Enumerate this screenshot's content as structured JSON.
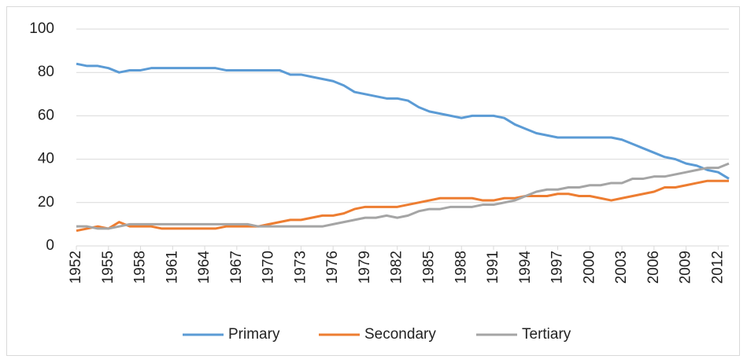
{
  "chart_data": {
    "type": "line",
    "x": [
      1952,
      1953,
      1954,
      1955,
      1956,
      1957,
      1958,
      1959,
      1960,
      1961,
      1962,
      1963,
      1964,
      1965,
      1966,
      1967,
      1968,
      1969,
      1970,
      1971,
      1972,
      1973,
      1974,
      1975,
      1976,
      1977,
      1978,
      1979,
      1980,
      1981,
      1982,
      1983,
      1984,
      1985,
      1986,
      1987,
      1988,
      1989,
      1990,
      1991,
      1992,
      1993,
      1994,
      1995,
      1996,
      1997,
      1998,
      1999,
      2000,
      2001,
      2002,
      2003,
      2004,
      2005,
      2006,
      2007,
      2008,
      2009,
      2010,
      2011,
      2012,
      2013
    ],
    "xlim": [
      1952,
      2013
    ],
    "xticks": [
      1952,
      1955,
      1958,
      1961,
      1964,
      1967,
      1970,
      1973,
      1976,
      1979,
      1982,
      1985,
      1988,
      1991,
      1994,
      1997,
      2000,
      2003,
      2006,
      2009,
      2012
    ],
    "ylim": [
      0,
      100
    ],
    "yticks": [
      0,
      20,
      40,
      60,
      80,
      100
    ],
    "grid": true,
    "legend": "bottom",
    "series": [
      {
        "name": "Primary",
        "color": "#5b9bd5",
        "values": [
          84,
          83,
          83,
          82,
          80,
          81,
          81,
          82,
          82,
          82,
          82,
          82,
          82,
          82,
          81,
          81,
          81,
          81,
          81,
          81,
          79,
          79,
          78,
          77,
          76,
          74,
          71,
          70,
          69,
          68,
          68,
          67,
          64,
          62,
          61,
          60,
          59,
          60,
          60,
          60,
          59,
          56,
          54,
          52,
          51,
          50,
          50,
          50,
          50,
          50,
          50,
          49,
          47,
          45,
          43,
          41,
          40,
          38,
          37,
          35,
          34,
          31
        ]
      },
      {
        "name": "Secondary",
        "color": "#ed7d31",
        "values": [
          7,
          8,
          9,
          8,
          11,
          9,
          9,
          9,
          8,
          8,
          8,
          8,
          8,
          8,
          9,
          9,
          9,
          9,
          10,
          11,
          12,
          12,
          13,
          14,
          14,
          15,
          17,
          18,
          18,
          18,
          18,
          19,
          20,
          21,
          22,
          22,
          22,
          22,
          21,
          21,
          22,
          22,
          23,
          23,
          23,
          24,
          24,
          23,
          23,
          22,
          21,
          22,
          23,
          24,
          25,
          27,
          27,
          28,
          29,
          30,
          30,
          30
        ]
      },
      {
        "name": "Tertiary",
        "color": "#a5a5a5",
        "values": [
          9,
          9,
          8,
          8,
          9,
          10,
          10,
          10,
          10,
          10,
          10,
          10,
          10,
          10,
          10,
          10,
          10,
          9,
          9,
          9,
          9,
          9,
          9,
          9,
          10,
          11,
          12,
          13,
          13,
          14,
          13,
          14,
          16,
          17,
          17,
          18,
          18,
          18,
          19,
          19,
          20,
          21,
          23,
          25,
          26,
          26,
          27,
          27,
          28,
          28,
          29,
          29,
          31,
          31,
          32,
          32,
          33,
          34,
          35,
          36,
          36,
          38
        ]
      }
    ]
  }
}
